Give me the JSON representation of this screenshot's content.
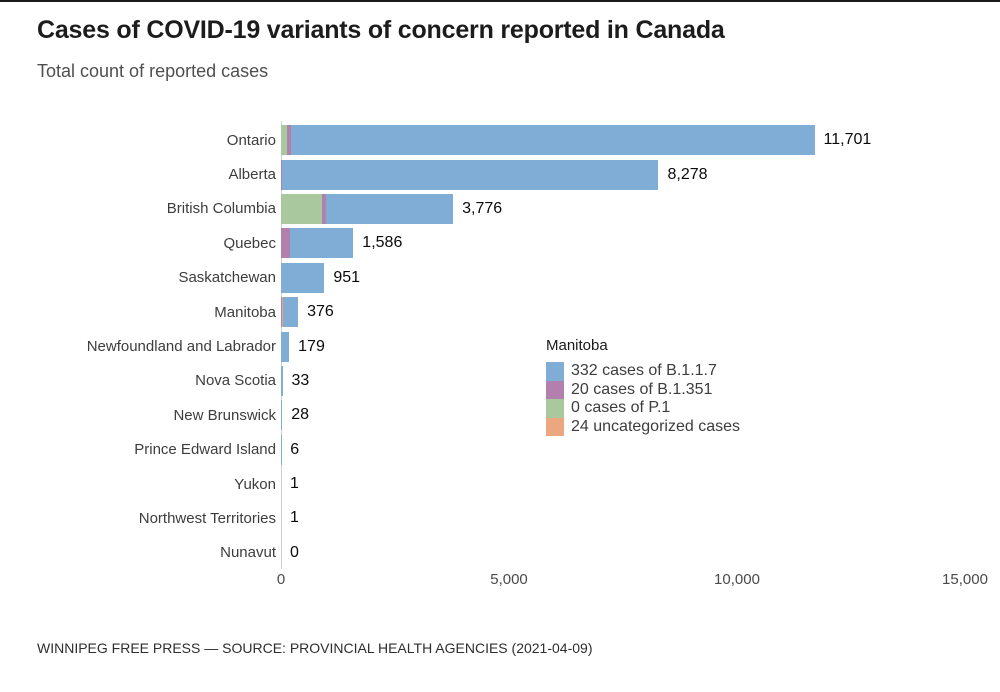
{
  "header": {
    "title": "Cases of COVID-19 variants of concern reported in Canada",
    "subtitle": "Total count of reported cases"
  },
  "chart_data": {
    "type": "bar",
    "orientation": "horizontal",
    "stacked": true,
    "grid": false,
    "x_axis": {
      "min": 0,
      "max": 15000,
      "ticks": [
        {
          "value": 0,
          "label": "0"
        },
        {
          "value": 5000,
          "label": "5,000"
        },
        {
          "value": 10000,
          "label": "10,000"
        },
        {
          "value": 15000,
          "label": "15,000"
        }
      ]
    },
    "categories": [
      "Ontario",
      "Alberta",
      "British Columbia",
      "Quebec",
      "Saskatchewan",
      "Manitoba",
      "Newfoundland and Labrador",
      "Nova Scotia",
      "New Brunswick",
      "Prince Edward Island",
      "Yukon",
      "Northwest Territories",
      "Nunavut"
    ],
    "totals": [
      11701,
      8278,
      3776,
      1586,
      951,
      376,
      179,
      33,
      28,
      6,
      1,
      1,
      0
    ],
    "total_labels": [
      "11,701",
      "8,278",
      "3,776",
      "1,586",
      "951",
      "376",
      "179",
      "33",
      "28",
      "6",
      "1",
      "1",
      "0"
    ],
    "series": [
      {
        "name": "P.1",
        "color": "#a9c89e",
        "values": [
          132,
          0,
          900,
          0,
          0,
          0,
          0,
          0,
          0,
          0,
          0,
          0,
          0
        ]
      },
      {
        "name": "B.1.351",
        "color": "#b280ac",
        "values": [
          88,
          22,
          88,
          200,
          0,
          20,
          0,
          0,
          0,
          0,
          0,
          0,
          0
        ]
      },
      {
        "name": "uncategorized",
        "color": "#eca680",
        "values": [
          0,
          0,
          0,
          0,
          0,
          24,
          0,
          0,
          0,
          0,
          0,
          0,
          0
        ]
      },
      {
        "name": "B.1.1.7",
        "color": "#7fadd6",
        "values": [
          11481,
          8256,
          2788,
          1386,
          951,
          332,
          179,
          33,
          28,
          6,
          1,
          1,
          0
        ]
      }
    ],
    "legend_position": "overlay-right-middle"
  },
  "tooltip": {
    "title": "Manitoba",
    "rows": [
      {
        "color": "#7fadd6",
        "label": "332 cases of B.1.1.7"
      },
      {
        "color": "#b280ac",
        "label": "20 cases of B.1.351"
      },
      {
        "color": "#a9c89e",
        "label": "0 cases of P.1"
      },
      {
        "color": "#eca680",
        "label": "24 uncategorized cases"
      }
    ]
  },
  "footer": {
    "source": "WINNIPEG FREE PRESS — SOURCE: PROVINCIAL HEALTH AGENCIES (2021-04-09)"
  }
}
